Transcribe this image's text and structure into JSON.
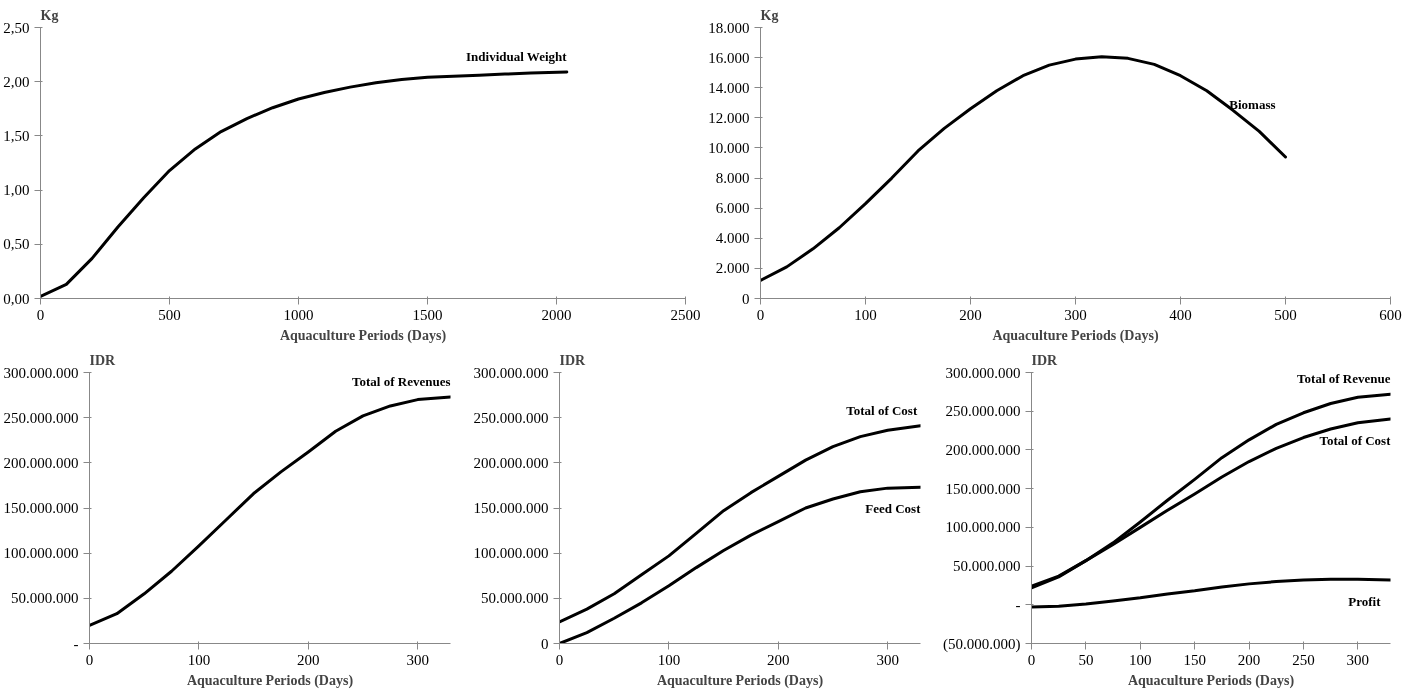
{
  "chart_data": [
    {
      "type": "line",
      "ylabel": "Kg",
      "xlabel": "Aquaculture Periods (Days)",
      "xlim": [
        0,
        2500
      ],
      "xticks": [
        0,
        500,
        1000,
        1500,
        2000,
        2500
      ],
      "ylim": [
        0,
        2.5
      ],
      "yticks": [
        {
          "value": 0,
          "label": "0,00"
        },
        {
          "value": 0.5,
          "label": "0,50"
        },
        {
          "value": 1,
          "label": "1,00"
        },
        {
          "value": 1.5,
          "label": "1,50"
        },
        {
          "value": 2,
          "label": "2,00"
        },
        {
          "value": 2.5,
          "label": "2,50"
        }
      ],
      "series": [
        {
          "name": "Individual Weight",
          "color": "#000000",
          "x": [
            0,
            100,
            200,
            300,
            400,
            500,
            600,
            700,
            800,
            900,
            1000,
            1100,
            1200,
            1300,
            1400,
            1500,
            1600,
            1700,
            1800,
            1900,
            2040
          ],
          "values": [
            0.02,
            0.13,
            0.37,
            0.66,
            0.93,
            1.18,
            1.38,
            1.54,
            1.66,
            1.76,
            1.84,
            1.9,
            1.95,
            1.99,
            2.02,
            2.04,
            2.05,
            2.06,
            2.07,
            2.08,
            2.09
          ]
        }
      ]
    },
    {
      "type": "line",
      "ylabel": "Kg",
      "xlabel": "Aquaculture Periods (Days)",
      "xlim": [
        0,
        600
      ],
      "xticks": [
        0,
        100,
        200,
        300,
        400,
        500,
        600
      ],
      "ylim": [
        0,
        18000
      ],
      "yticks": [
        0,
        {
          "value": 2000,
          "label": "2.000"
        },
        {
          "value": 4000,
          "label": "4.000"
        },
        {
          "value": 6000,
          "label": "6.000"
        },
        {
          "value": 8000,
          "label": "8.000"
        },
        {
          "value": 10000,
          "label": "10.000"
        },
        {
          "value": 12000,
          "label": "12.000"
        },
        {
          "value": 14000,
          "label": "14.000"
        },
        {
          "value": 16000,
          "label": "16.000"
        },
        {
          "value": 18000,
          "label": "18.000"
        }
      ],
      "series": [
        {
          "name": "Biomass",
          "color": "#000000",
          "x": [
            0,
            25,
            50,
            75,
            100,
            125,
            150,
            175,
            200,
            225,
            250,
            275,
            300,
            325,
            350,
            375,
            400,
            425,
            450,
            475,
            500
          ],
          "values": [
            1200,
            2100,
            3300,
            4700,
            6300,
            8000,
            9800,
            11300,
            12600,
            13800,
            14800,
            15500,
            15900,
            16050,
            15950,
            15550,
            14800,
            13800,
            12500,
            11100,
            9400
          ]
        }
      ]
    },
    {
      "type": "line",
      "ylabel": "IDR",
      "xlabel": "Aquaculture Periods (Days)",
      "xlim": [
        0,
        330
      ],
      "xticks": [
        0,
        100,
        200,
        300
      ],
      "ylim": [
        0,
        300000000
      ],
      "yticks": [
        {
          "value": 0,
          "label": "-"
        },
        {
          "value": 50000000,
          "label": "50.000.000"
        },
        {
          "value": 100000000,
          "label": "100.000.000"
        },
        {
          "value": 150000000,
          "label": "150.000.000"
        },
        {
          "value": 200000000,
          "label": "200.000.000"
        },
        {
          "value": 250000000,
          "label": "250.000.000"
        },
        {
          "value": 300000000,
          "label": "300.000.000"
        }
      ],
      "series": [
        {
          "name": "Total of Revenues",
          "color": "#000000",
          "x": [
            0,
            25,
            50,
            75,
            100,
            125,
            150,
            175,
            200,
            225,
            250,
            275,
            300,
            330
          ],
          "values": [
            20000000,
            33000000,
            55000000,
            80000000,
            108000000,
            137000000,
            166000000,
            190000000,
            212000000,
            235000000,
            252000000,
            263000000,
            270000000,
            273000000
          ]
        }
      ]
    },
    {
      "type": "line",
      "ylabel": "IDR",
      "xlabel": "Aquaculture Periods (Days)",
      "xlim": [
        0,
        330
      ],
      "xticks": [
        0,
        100,
        200,
        300
      ],
      "ylim": [
        0,
        300000000
      ],
      "yticks": [
        0,
        {
          "value": 50000000,
          "label": "50.000.000"
        },
        {
          "value": 100000000,
          "label": "100.000.000"
        },
        {
          "value": 150000000,
          "label": "150.000.000"
        },
        {
          "value": 200000000,
          "label": "200.000.000"
        },
        {
          "value": 250000000,
          "label": "250.000.000"
        },
        {
          "value": 300000000,
          "label": "300.000.000"
        }
      ],
      "series": [
        {
          "name": "Total  of Cost",
          "color": "#000000",
          "x": [
            0,
            25,
            50,
            75,
            100,
            125,
            150,
            175,
            200,
            225,
            250,
            275,
            300,
            330
          ],
          "values": [
            24000000,
            38000000,
            55000000,
            76000000,
            97000000,
            122000000,
            147000000,
            167000000,
            185000000,
            203000000,
            218000000,
            229000000,
            236000000,
            241000000
          ]
        },
        {
          "name": "Feed Cost",
          "color": "#000000",
          "x": [
            0,
            25,
            50,
            75,
            100,
            125,
            150,
            175,
            200,
            225,
            250,
            275,
            300,
            330
          ],
          "values": [
            0,
            12000000,
            28000000,
            45000000,
            64000000,
            84000000,
            103000000,
            120000000,
            135000000,
            150000000,
            160000000,
            168000000,
            172000000,
            173000000
          ]
        }
      ]
    },
    {
      "type": "line",
      "ylabel": "IDR",
      "xlabel": "Aquaculture Periods (Days)",
      "xlim": [
        0,
        330
      ],
      "xticks": [
        0,
        50,
        100,
        150,
        200,
        250,
        300
      ],
      "ylim": [
        -50000000,
        300000000
      ],
      "yticks": [
        {
          "value": -50000000,
          "label": "(50.000.000)"
        },
        {
          "value": 0,
          "label": "-"
        },
        {
          "value": 50000000,
          "label": "50.000.000"
        },
        {
          "value": 100000000,
          "label": "100.000.000"
        },
        {
          "value": 150000000,
          "label": "150.000.000"
        },
        {
          "value": 200000000,
          "label": "200.000.000"
        },
        {
          "value": 250000000,
          "label": "250.000.000"
        },
        {
          "value": 300000000,
          "label": "300.000.000"
        }
      ],
      "series": [
        {
          "name": "Total of Revenue",
          "color": "#000000",
          "x": [
            0,
            25,
            50,
            75,
            100,
            125,
            150,
            175,
            200,
            225,
            250,
            275,
            300,
            330
          ],
          "values": [
            22000000,
            36000000,
            57000000,
            80000000,
            107000000,
            135000000,
            162000000,
            190000000,
            213000000,
            233000000,
            248000000,
            260000000,
            268000000,
            272000000
          ]
        },
        {
          "name": "Total of Cost",
          "color": "#000000",
          "x": [
            0,
            25,
            50,
            75,
            100,
            125,
            150,
            175,
            200,
            225,
            250,
            275,
            300,
            330
          ],
          "values": [
            24000000,
            37000000,
            57000000,
            78000000,
            100000000,
            122000000,
            143000000,
            165000000,
            185000000,
            202000000,
            216000000,
            227000000,
            235000000,
            240000000
          ]
        },
        {
          "name": "Profit",
          "color": "#000000",
          "x": [
            0,
            25,
            50,
            75,
            100,
            125,
            150,
            175,
            200,
            225,
            250,
            275,
            300,
            330
          ],
          "values": [
            -3000000,
            -2000000,
            1000000,
            5000000,
            9000000,
            14000000,
            18000000,
            23000000,
            27000000,
            30000000,
            32000000,
            33000000,
            33000000,
            32000000
          ]
        }
      ]
    }
  ]
}
